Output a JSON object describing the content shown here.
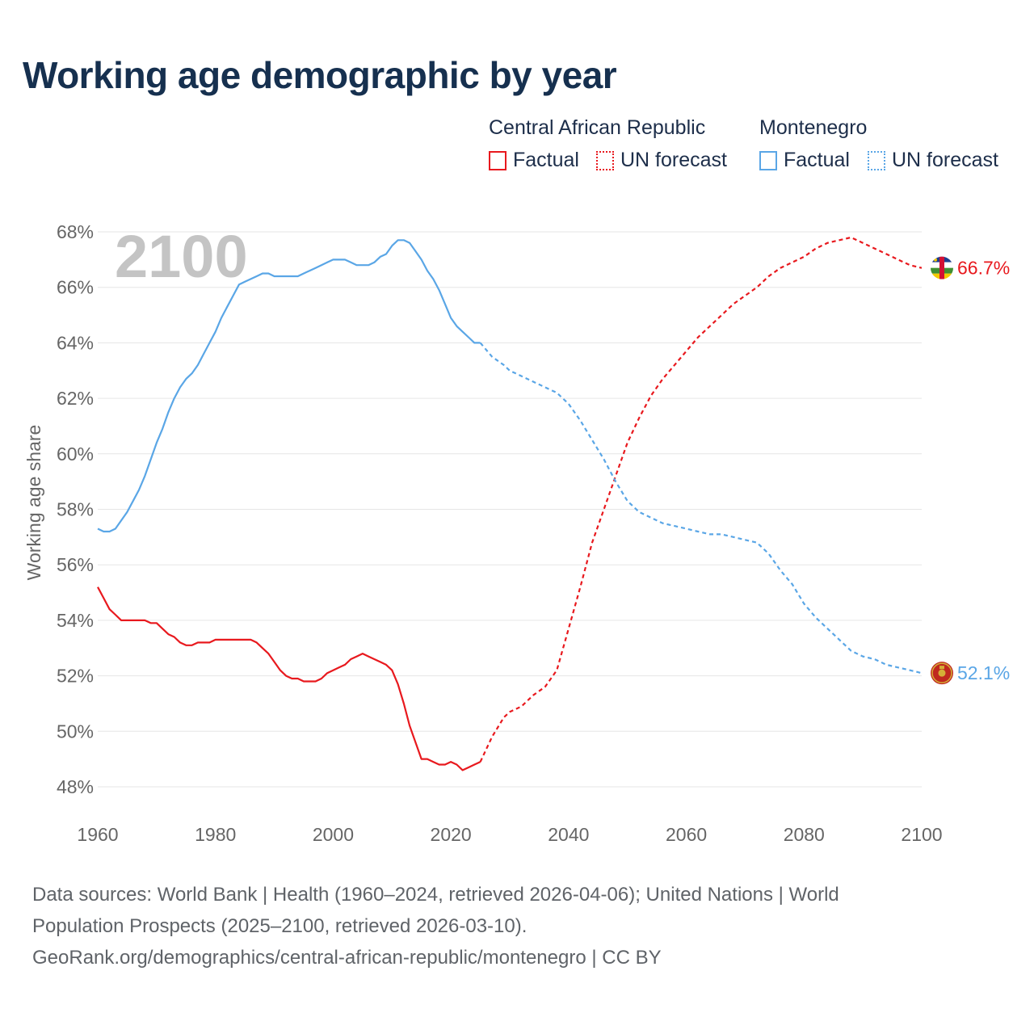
{
  "title": "Working age demographic by year",
  "legend": {
    "groups": [
      {
        "country": "Central African Republic",
        "factual_label": "Factual",
        "forecast_label": "UN forecast"
      },
      {
        "country": "Montenegro",
        "factual_label": "Factual",
        "forecast_label": "UN forecast"
      }
    ]
  },
  "footer": {
    "line1": "Data sources: World Bank | Health (1960–2024, retrieved 2026-04-06); United Nations | World",
    "line2": "Population Prospects (2025–2100, retrieved 2026-03-10).",
    "line3": "GeoRank.org/demographics/central-african-republic/montenegro | CC BY"
  },
  "colors": {
    "car": "#e8191e",
    "montenegro": "#5aa6e6",
    "grid": "#e6e6e6",
    "axis_text": "#666666",
    "year_watermark": "#c4c4c4"
  },
  "chart_data": {
    "type": "line",
    "title": "Working age demographic by year",
    "xlabel": "",
    "ylabel": "Working age share",
    "xlim": [
      1960,
      2100
    ],
    "ylim": [
      47.5,
      68.5
    ],
    "x_ticks": [
      1960,
      1980,
      2000,
      2020,
      2040,
      2060,
      2080,
      2100
    ],
    "y_ticks": [
      48,
      50,
      52,
      54,
      56,
      58,
      60,
      62,
      64,
      66,
      68
    ],
    "y_tick_suffix": "%",
    "year_label": "2100",
    "series": [
      {
        "name": "Central African Republic",
        "color": "#e8191e",
        "end_label": "66.7%",
        "factual": {
          "x": [
            1960,
            1961,
            1962,
            1963,
            1964,
            1965,
            1966,
            1967,
            1968,
            1969,
            1970,
            1971,
            1972,
            1973,
            1974,
            1975,
            1976,
            1977,
            1978,
            1979,
            1980,
            1981,
            1982,
            1983,
            1984,
            1985,
            1986,
            1987,
            1988,
            1989,
            1990,
            1991,
            1992,
            1993,
            1994,
            1995,
            1996,
            1997,
            1998,
            1999,
            2000,
            2001,
            2002,
            2003,
            2004,
            2005,
            2006,
            2007,
            2008,
            2009,
            2010,
            2011,
            2012,
            2013,
            2014,
            2015,
            2016,
            2017,
            2018,
            2019,
            2020,
            2021,
            2022,
            2023,
            2024,
            2025
          ],
          "y": [
            55.2,
            54.8,
            54.4,
            54.2,
            54.0,
            54.0,
            54.0,
            54.0,
            54.0,
            53.9,
            53.9,
            53.7,
            53.5,
            53.4,
            53.2,
            53.1,
            53.1,
            53.2,
            53.2,
            53.2,
            53.3,
            53.3,
            53.3,
            53.3,
            53.3,
            53.3,
            53.3,
            53.2,
            53.0,
            52.8,
            52.5,
            52.2,
            52.0,
            51.9,
            51.9,
            51.8,
            51.8,
            51.8,
            51.9,
            52.1,
            52.2,
            52.3,
            52.4,
            52.6,
            52.7,
            52.8,
            52.7,
            52.6,
            52.5,
            52.4,
            52.2,
            51.7,
            51.0,
            50.2,
            49.6,
            49.0,
            49.0,
            48.9,
            48.8,
            48.8,
            48.9,
            48.8,
            48.6,
            48.7,
            48.8,
            48.9
          ]
        },
        "forecast": {
          "x": [
            2025,
            2027,
            2029,
            2030,
            2032,
            2034,
            2036,
            2038,
            2040,
            2042,
            2044,
            2046,
            2048,
            2050,
            2052,
            2054,
            2056,
            2058,
            2060,
            2062,
            2064,
            2066,
            2068,
            2070,
            2072,
            2074,
            2076,
            2078,
            2080,
            2082,
            2084,
            2086,
            2088,
            2090,
            2092,
            2094,
            2096,
            2098,
            2100
          ],
          "y": [
            48.9,
            49.8,
            50.5,
            50.7,
            50.9,
            51.3,
            51.6,
            52.2,
            53.7,
            55.2,
            56.8,
            58.0,
            59.2,
            60.4,
            61.3,
            62.1,
            62.7,
            63.2,
            63.7,
            64.2,
            64.6,
            65.0,
            65.4,
            65.7,
            66.0,
            66.4,
            66.7,
            66.9,
            67.1,
            67.4,
            67.6,
            67.7,
            67.8,
            67.6,
            67.4,
            67.2,
            67.0,
            66.8,
            66.7
          ]
        }
      },
      {
        "name": "Montenegro",
        "color": "#5aa6e6",
        "end_label": "52.1%",
        "factual": {
          "x": [
            1960,
            1961,
            1962,
            1963,
            1964,
            1965,
            1966,
            1967,
            1968,
            1969,
            1970,
            1971,
            1972,
            1973,
            1974,
            1975,
            1976,
            1977,
            1978,
            1979,
            1980,
            1981,
            1982,
            1983,
            1984,
            1985,
            1986,
            1987,
            1988,
            1989,
            1990,
            1991,
            1992,
            1993,
            1994,
            1995,
            1996,
            1997,
            1998,
            1999,
            2000,
            2001,
            2002,
            2003,
            2004,
            2005,
            2006,
            2007,
            2008,
            2009,
            2010,
            2011,
            2012,
            2013,
            2014,
            2015,
            2016,
            2017,
            2018,
            2019,
            2020,
            2021,
            2022,
            2023,
            2024,
            2025
          ],
          "y": [
            57.3,
            57.2,
            57.2,
            57.3,
            57.6,
            57.9,
            58.3,
            58.7,
            59.2,
            59.8,
            60.4,
            60.9,
            61.5,
            62.0,
            62.4,
            62.7,
            62.9,
            63.2,
            63.6,
            64.0,
            64.4,
            64.9,
            65.3,
            65.7,
            66.1,
            66.2,
            66.3,
            66.4,
            66.5,
            66.5,
            66.4,
            66.4,
            66.4,
            66.4,
            66.4,
            66.5,
            66.6,
            66.7,
            66.8,
            66.9,
            67.0,
            67.0,
            67.0,
            66.9,
            66.8,
            66.8,
            66.8,
            66.9,
            67.1,
            67.2,
            67.5,
            67.7,
            67.7,
            67.6,
            67.3,
            67.0,
            66.6,
            66.3,
            65.9,
            65.4,
            64.9,
            64.6,
            64.4,
            64.2,
            64.0,
            64.0
          ]
        },
        "forecast": {
          "x": [
            2025,
            2027,
            2029,
            2030,
            2032,
            2034,
            2036,
            2038,
            2040,
            2042,
            2044,
            2046,
            2048,
            2050,
            2052,
            2054,
            2056,
            2058,
            2060,
            2062,
            2064,
            2066,
            2068,
            2070,
            2072,
            2074,
            2076,
            2078,
            2080,
            2082,
            2084,
            2086,
            2088,
            2090,
            2092,
            2094,
            2096,
            2098,
            2100
          ],
          "y": [
            64.0,
            63.5,
            63.2,
            63.0,
            62.8,
            62.6,
            62.4,
            62.2,
            61.8,
            61.2,
            60.5,
            59.8,
            59.0,
            58.3,
            57.9,
            57.7,
            57.5,
            57.4,
            57.3,
            57.2,
            57.1,
            57.1,
            57.0,
            56.9,
            56.8,
            56.4,
            55.8,
            55.3,
            54.6,
            54.1,
            53.7,
            53.3,
            52.9,
            52.7,
            52.6,
            52.4,
            52.3,
            52.2,
            52.1
          ]
        }
      }
    ]
  }
}
